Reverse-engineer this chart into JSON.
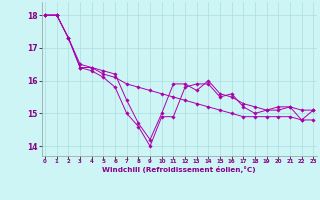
{
  "xlabel": "Windchill (Refroidissement éolien,°C)",
  "x_ticks": [
    0,
    1,
    2,
    3,
    4,
    5,
    6,
    7,
    8,
    9,
    10,
    11,
    12,
    13,
    14,
    15,
    16,
    17,
    18,
    19,
    20,
    21,
    22,
    23
  ],
  "ylim": [
    13.7,
    18.4
  ],
  "xlim": [
    -0.3,
    23.3
  ],
  "yticks": [
    14,
    15,
    16,
    17,
    18
  ],
  "bg_color": "#cef5f5",
  "grid_color": "#aadddd",
  "line_color": "#aa00aa",
  "line1": [
    18.0,
    18.0,
    17.3,
    16.4,
    16.3,
    16.1,
    15.8,
    15.0,
    14.6,
    14.0,
    14.9,
    14.9,
    15.8,
    15.9,
    15.9,
    15.5,
    15.6,
    15.2,
    15.0,
    15.1,
    15.1,
    15.2,
    14.8,
    15.1
  ],
  "line2": [
    18.0,
    18.0,
    17.3,
    16.4,
    16.4,
    16.2,
    16.1,
    15.9,
    15.8,
    15.7,
    15.6,
    15.5,
    15.4,
    15.3,
    15.2,
    15.1,
    15.0,
    14.9,
    14.9,
    14.9,
    14.9,
    14.9,
    14.8,
    14.8
  ],
  "line3": [
    18.0,
    18.0,
    17.3,
    16.5,
    16.4,
    16.3,
    16.2,
    15.4,
    14.7,
    14.2,
    15.0,
    15.9,
    15.9,
    15.7,
    16.0,
    15.6,
    15.5,
    15.3,
    15.2,
    15.1,
    15.2,
    15.2,
    15.1,
    15.1
  ]
}
